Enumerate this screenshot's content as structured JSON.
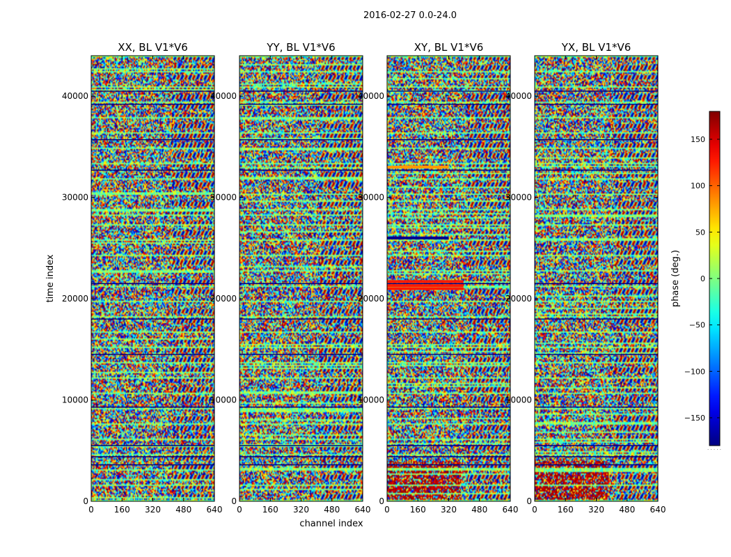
{
  "figure": {
    "suptitle": "2016-02-27 0.0-24.0",
    "xlabel": "channel index",
    "ylabel": "time index",
    "colorbar_label": "phase (deg.)",
    "colorbar_extra": "· · · · ·"
  },
  "chart_data": {
    "type": "heatmap",
    "colormap": "jet",
    "panels": [
      {
        "title": "XX, BL V1*V6",
        "polarization": "XX"
      },
      {
        "title": "YY, BL V1*V6",
        "polarization": "YY"
      },
      {
        "title": "XY, BL V1*V6",
        "polarization": "XY"
      },
      {
        "title": "YX, BL V1*V6",
        "polarization": "YX"
      }
    ],
    "x": {
      "label": "channel index",
      "range": [
        0,
        640
      ],
      "ticks": [
        0,
        160,
        320,
        480,
        640
      ]
    },
    "y": {
      "label": "time index",
      "range": [
        0,
        44000
      ],
      "ticks": [
        0,
        10000,
        20000,
        30000,
        40000
      ]
    },
    "colorbar": {
      "label": "phase (deg.)",
      "range": [
        -180,
        180
      ],
      "ticks": [
        150,
        100,
        50,
        0,
        -50,
        -100,
        -150
      ],
      "tick_labels": [
        "150",
        "100",
        "50",
        "0",
        "−50",
        "−100",
        "−150"
      ]
    },
    "flagged_time_rows": [
      21500,
      18000,
      14500,
      9300,
      5500,
      4400,
      3600,
      32700,
      35700,
      39200,
      40500
    ],
    "colors": {
      "jet_low": "#00007f",
      "jet_mid": "#7fff7f",
      "jet_high": "#7f0000",
      "frame": "#000000"
    }
  }
}
